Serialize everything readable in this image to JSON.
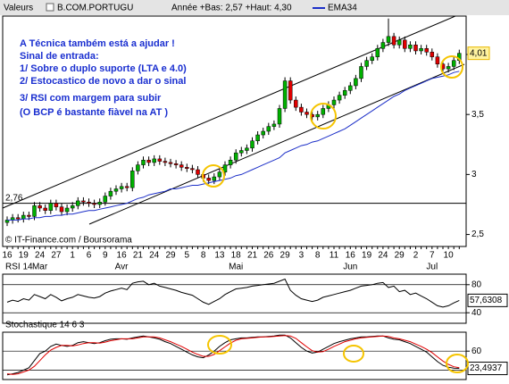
{
  "header": {
    "field": "Valeurs",
    "name": "B.COM.PORTUGU",
    "range": "Année +Bas: 2,57 +Haut: 4,30"
  },
  "chart_data": [
    {
      "type": "candlestick",
      "categories": [
        "16",
        null,
        null,
        "19",
        null,
        null,
        "24",
        null,
        null,
        "27",
        null,
        null,
        "1",
        null,
        null,
        "6",
        null,
        null,
        "9",
        null,
        null,
        "16",
        null,
        null,
        "21",
        null,
        null,
        "24",
        null,
        null,
        "29",
        null,
        null,
        "5",
        null,
        null,
        "8",
        null,
        null,
        "13",
        null,
        null,
        "18",
        null,
        null,
        "21",
        null,
        null,
        "26",
        null,
        null,
        "29",
        null,
        null,
        "3",
        null,
        null,
        "8",
        null,
        null,
        "11",
        null,
        null,
        "16",
        null,
        null,
        "19",
        null,
        null,
        "24",
        null,
        null,
        "29",
        null,
        null,
        "2",
        null,
        null,
        "7",
        null,
        null,
        "10",
        null,
        null
      ],
      "months": [
        null,
        null,
        null,
        null,
        null,
        null,
        "Mar",
        null,
        null,
        null,
        null,
        null,
        null,
        null,
        null,
        null,
        null,
        null,
        null,
        null,
        null,
        "Avr",
        null,
        null,
        null,
        null,
        null,
        null,
        null,
        null,
        null,
        null,
        null,
        null,
        null,
        null,
        null,
        null,
        null,
        null,
        null,
        null,
        "Mai",
        null,
        null,
        null,
        null,
        null,
        null,
        null,
        null,
        null,
        null,
        null,
        null,
        null,
        null,
        null,
        null,
        null,
        null,
        null,
        null,
        "Jun",
        null,
        null,
        null,
        null,
        null,
        null,
        null,
        null,
        null,
        null,
        null,
        null,
        null,
        null,
        "Jul",
        null,
        null,
        null,
        null
      ],
      "open": [
        2.6,
        2.62,
        2.64,
        2.63,
        2.66,
        2.65,
        2.74,
        2.72,
        2.7,
        2.76,
        2.73,
        2.69,
        2.72,
        2.74,
        2.78,
        2.77,
        2.76,
        2.75,
        2.77,
        2.82,
        2.86,
        2.88,
        2.9,
        2.89,
        3.03,
        3.08,
        3.12,
        3.1,
        3.13,
        3.11,
        3.1,
        3.09,
        3.08,
        3.06,
        3.05,
        3.04,
        3.0,
        2.97,
        2.95,
        2.98,
        3.02,
        3.08,
        3.12,
        3.18,
        3.2,
        3.22,
        3.28,
        3.33,
        3.36,
        3.4,
        3.42,
        3.55,
        3.78,
        3.62,
        3.56,
        3.52,
        3.5,
        3.48,
        3.5,
        3.55,
        3.58,
        3.62,
        3.66,
        3.7,
        3.74,
        3.8,
        3.9,
        3.95,
        3.98,
        4.05,
        4.1,
        4.15,
        4.08,
        4.12,
        4.05,
        4.08,
        4.03,
        4.05,
        4.02,
        3.98,
        3.92,
        3.88,
        3.9,
        3.95
      ],
      "high": [
        2.65,
        2.67,
        2.67,
        2.69,
        2.69,
        2.77,
        2.77,
        2.75,
        2.79,
        2.79,
        2.76,
        2.75,
        2.77,
        2.81,
        2.81,
        2.8,
        2.79,
        2.8,
        2.85,
        2.89,
        2.91,
        2.93,
        2.93,
        3.06,
        3.11,
        3.15,
        3.15,
        3.16,
        3.16,
        3.14,
        3.13,
        3.12,
        3.11,
        3.09,
        3.08,
        3.07,
        3.03,
        3.0,
        3.01,
        3.05,
        3.11,
        3.15,
        3.21,
        3.23,
        3.25,
        3.31,
        3.36,
        3.39,
        3.43,
        3.45,
        3.58,
        3.81,
        3.81,
        3.65,
        3.59,
        3.55,
        3.53,
        3.53,
        3.58,
        3.61,
        3.65,
        3.69,
        3.73,
        3.77,
        3.83,
        3.93,
        3.98,
        4.01,
        4.08,
        4.13,
        4.3,
        4.18,
        4.15,
        4.15,
        4.11,
        4.11,
        4.08,
        4.08,
        4.05,
        4.01,
        3.95,
        3.93,
        3.98,
        4.04
      ],
      "low": [
        2.57,
        2.59,
        2.6,
        2.6,
        2.62,
        2.62,
        2.69,
        2.67,
        2.67,
        2.7,
        2.66,
        2.66,
        2.69,
        2.71,
        2.74,
        2.73,
        2.72,
        2.72,
        2.74,
        2.79,
        2.83,
        2.85,
        2.86,
        2.86,
        3.0,
        3.05,
        3.07,
        3.07,
        3.08,
        3.07,
        3.06,
        3.05,
        3.03,
        3.02,
        3.01,
        2.97,
        2.94,
        2.92,
        2.92,
        2.95,
        2.99,
        3.05,
        3.09,
        3.15,
        3.17,
        3.19,
        3.25,
        3.3,
        3.33,
        3.37,
        3.39,
        3.52,
        3.59,
        3.53,
        3.49,
        3.47,
        3.45,
        3.45,
        3.47,
        3.52,
        3.55,
        3.59,
        3.63,
        3.67,
        3.71,
        3.77,
        3.87,
        3.92,
        3.95,
        4.02,
        4.07,
        4.05,
        4.05,
        4.02,
        4.02,
        4.0,
        4.0,
        3.99,
        3.95,
        3.89,
        3.85,
        3.85,
        3.87,
        3.92
      ],
      "close": [
        2.62,
        2.64,
        2.63,
        2.66,
        2.65,
        2.74,
        2.72,
        2.7,
        2.76,
        2.73,
        2.69,
        2.72,
        2.74,
        2.78,
        2.77,
        2.76,
        2.75,
        2.77,
        2.82,
        2.86,
        2.88,
        2.9,
        2.89,
        3.03,
        3.08,
        3.12,
        3.1,
        3.13,
        3.11,
        3.1,
        3.09,
        3.08,
        3.06,
        3.05,
        3.04,
        3.0,
        2.97,
        2.95,
        2.98,
        3.02,
        3.08,
        3.12,
        3.18,
        3.2,
        3.22,
        3.28,
        3.33,
        3.36,
        3.4,
        3.42,
        3.55,
        3.78,
        3.62,
        3.56,
        3.52,
        3.5,
        3.48,
        3.5,
        3.55,
        3.58,
        3.62,
        3.66,
        3.7,
        3.74,
        3.8,
        3.9,
        3.95,
        3.98,
        4.05,
        4.1,
        4.15,
        4.08,
        4.12,
        4.05,
        4.08,
        4.03,
        4.05,
        4.02,
        3.98,
        3.92,
        3.88,
        3.9,
        3.95,
        4.01
      ],
      "up_color": "#00b000",
      "down_color": "#e00000",
      "series": [
        {
          "name": "EMA34",
          "color": "#1c2fc8",
          "values": [
            2.62,
            2.62,
            2.62,
            2.63,
            2.63,
            2.64,
            2.64,
            2.65,
            2.65,
            2.66,
            2.66,
            2.67,
            2.67,
            2.68,
            2.69,
            2.7,
            2.7,
            2.71,
            2.72,
            2.73,
            2.74,
            2.75,
            2.76,
            2.78,
            2.8,
            2.81,
            2.83,
            2.84,
            2.85,
            2.86,
            2.88,
            2.88,
            2.89,
            2.9,
            2.91,
            2.91,
            2.92,
            2.93,
            2.94,
            2.95,
            2.96,
            2.97,
            2.99,
            3.0,
            3.02,
            3.04,
            3.06,
            3.08,
            3.1,
            3.12,
            3.14,
            3.18,
            3.2,
            3.22,
            3.24,
            3.25,
            3.27,
            3.28,
            3.3,
            3.32,
            3.34,
            3.36,
            3.38,
            3.41,
            3.44,
            3.47,
            3.5,
            3.53,
            3.56,
            3.59,
            3.62,
            3.65,
            3.67,
            3.7,
            3.72,
            3.74,
            3.76,
            3.78,
            3.8,
            3.81,
            3.82,
            3.83,
            3.85,
            3.86
          ]
        }
      ],
      "ylim": [
        2.4,
        4.32
      ],
      "yticks": [
        {
          "value": 2.5,
          "label": "2,5"
        },
        3,
        {
          "value": 3.5,
          "label": "3,5"
        },
        4
      ],
      "hline": {
        "value": 2.76,
        "label": "2,76"
      },
      "last_value": {
        "value": 4.01,
        "label": "4,01"
      },
      "annotations": [
        "A Técnica também está a ajudar !",
        "Sinal de entrada:",
        "1/ Sobre o duplo suporte (LTA e 4.0)",
        "2/ Estocastico de novo a dar o sinal",
        "3/ RSI com margem para subir",
        "(O BCP é bastante fiàvel na AT )"
      ],
      "source": "© IT-Finance.com / Boursorama"
    },
    {
      "type": "line",
      "title": "RSI 14",
      "series": [
        {
          "color": "#000000",
          "values": [
            55,
            58,
            56,
            60,
            58,
            66,
            63,
            60,
            66,
            62,
            57,
            60,
            62,
            66,
            64,
            62,
            61,
            63,
            68,
            71,
            73,
            75,
            73,
            82,
            84,
            85,
            80,
            82,
            78,
            76,
            74,
            72,
            69,
            67,
            65,
            60,
            55,
            52,
            56,
            60,
            66,
            70,
            74,
            75,
            76,
            78,
            79,
            80,
            81,
            82,
            85,
            88,
            72,
            65,
            60,
            58,
            56,
            58,
            62,
            64,
            66,
            68,
            70,
            72,
            75,
            78,
            79,
            80,
            82,
            83,
            76,
            78,
            70,
            72,
            66,
            68,
            64,
            60,
            55,
            50,
            48,
            50,
            54,
            57.6308
          ]
        }
      ],
      "ylim": [
        25,
        95
      ],
      "yticks": [
        40,
        80
      ],
      "last_value": {
        "value": 57.6308,
        "label": "57,6308"
      }
    },
    {
      "type": "line",
      "title": "Stochastique 14 6 3",
      "series": [
        {
          "color": "#000000",
          "values": [
            10,
            12,
            15,
            20,
            25,
            40,
            55,
            60,
            70,
            75,
            72,
            70,
            72,
            78,
            80,
            78,
            76,
            78,
            82,
            85,
            86,
            86,
            85,
            88,
            90,
            92,
            90,
            88,
            85,
            80,
            76,
            70,
            64,
            58,
            52,
            48,
            46,
            52,
            60,
            70,
            78,
            84,
            86,
            88,
            88,
            89,
            90,
            90,
            91,
            92,
            94,
            94,
            88,
            78,
            68,
            60,
            56,
            58,
            64,
            70,
            76,
            80,
            83,
            86,
            88,
            90,
            90,
            91,
            92,
            92,
            88,
            85,
            84,
            80,
            76,
            70,
            64,
            58,
            48,
            38,
            30,
            26,
            24,
            23.4937
          ]
        },
        {
          "color": "#e00000",
          "values": [
            12,
            11,
            12,
            16,
            20,
            28,
            40,
            52,
            62,
            68,
            72,
            72,
            71,
            73,
            76,
            78,
            78,
            77,
            79,
            82,
            84,
            86,
            86,
            86,
            88,
            90,
            90,
            90,
            88,
            84,
            80,
            75,
            70,
            64,
            58,
            53,
            49,
            49,
            53,
            61,
            69,
            77,
            83,
            86,
            87,
            88,
            89,
            90,
            90,
            91,
            92,
            93,
            92,
            87,
            78,
            69,
            61,
            58,
            59,
            64,
            70,
            75,
            80,
            83,
            86,
            88,
            89,
            90,
            91,
            92,
            91,
            88,
            86,
            83,
            80,
            75,
            70,
            64,
            57,
            48,
            39,
            32,
            27,
            25
          ]
        }
      ],
      "ylim": [
        0,
        100
      ],
      "yticks": [
        60
      ],
      "levels": [
        20
      ],
      "last_value": {
        "value": 23.4937,
        "label": "23,4937"
      }
    }
  ]
}
